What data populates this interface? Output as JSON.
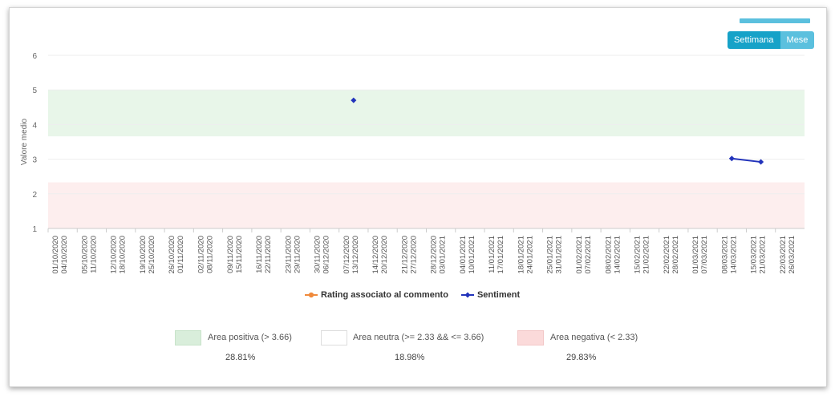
{
  "toggle": {
    "week_label": "Settimana",
    "month_label": "Mese"
  },
  "legend": [
    {
      "label": "Rating associato al commento",
      "color": "#f08a3c"
    },
    {
      "label": "Sentiment",
      "color": "#2233bb"
    }
  ],
  "areas": [
    {
      "label": "Area positiva (> 3.66)",
      "percent": "28.81%",
      "color": "#d9eedb",
      "border": "#c8e3ca"
    },
    {
      "label": "Area neutra (>= 2.33 && <= 3.66)",
      "percent": "18.98%",
      "color": "#ffffff",
      "border": "#dddddd"
    },
    {
      "label": "Area negativa (< 2.33)",
      "percent": "29.83%",
      "color": "#fbdada",
      "border": "#f3c8c8"
    }
  ],
  "chart_data": {
    "type": "line",
    "ylabel": "Valore medio",
    "xlabel": "",
    "ylim": [
      1,
      6
    ],
    "y_ticks": [
      "1",
      "2",
      "3",
      "4",
      "5",
      "6"
    ],
    "bands": [
      {
        "name": "positive",
        "from": 3.66,
        "to": 5,
        "color": "#e8f6e9"
      },
      {
        "name": "negative",
        "from": 1,
        "to": 2.33,
        "color": "#fdeeee"
      }
    ],
    "categories": [
      [
        "01/10/2020",
        "04/10/2020"
      ],
      [
        "05/10/2020",
        "11/10/2020"
      ],
      [
        "12/10/2020",
        "18/10/2020"
      ],
      [
        "19/10/2020",
        "25/10/2020"
      ],
      [
        "26/10/2020",
        "01/11/2020"
      ],
      [
        "02/11/2020",
        "08/11/2020"
      ],
      [
        "09/11/2020",
        "15/11/2020"
      ],
      [
        "16/11/2020",
        "22/11/2020"
      ],
      [
        "23/11/2020",
        "29/11/2020"
      ],
      [
        "30/11/2020",
        "06/12/2020"
      ],
      [
        "07/12/2020",
        "13/12/2020"
      ],
      [
        "14/12/2020",
        "20/12/2020"
      ],
      [
        "21/12/2020",
        "27/12/2020"
      ],
      [
        "28/12/2020",
        "03/01/2021"
      ],
      [
        "04/01/2021",
        "10/01/2021"
      ],
      [
        "11/01/2021",
        "17/01/2021"
      ],
      [
        "18/01/2021",
        "24/01/2021"
      ],
      [
        "25/01/2021",
        "31/01/2021"
      ],
      [
        "01/02/2021",
        "07/02/2021"
      ],
      [
        "08/02/2021",
        "14/02/2021"
      ],
      [
        "15/02/2021",
        "21/02/2021"
      ],
      [
        "22/02/2021",
        "28/02/2021"
      ],
      [
        "01/03/2021",
        "07/03/2021"
      ],
      [
        "08/03/2021",
        "14/03/2021"
      ],
      [
        "15/03/2021",
        "21/03/2021"
      ],
      [
        "22/03/2021",
        "26/03/2021"
      ]
    ],
    "series": [
      {
        "name": "Rating associato al commento",
        "color": "#f08a3c",
        "values": [
          null,
          null,
          null,
          null,
          null,
          null,
          null,
          null,
          null,
          null,
          null,
          null,
          null,
          null,
          null,
          null,
          null,
          null,
          null,
          null,
          null,
          null,
          null,
          null,
          null,
          null
        ]
      },
      {
        "name": "Sentiment",
        "color": "#2233bb",
        "values": [
          null,
          null,
          null,
          null,
          null,
          null,
          null,
          null,
          null,
          null,
          4.7,
          null,
          null,
          null,
          null,
          null,
          null,
          null,
          null,
          null,
          null,
          null,
          null,
          3.02,
          2.92,
          null
        ]
      }
    ]
  }
}
